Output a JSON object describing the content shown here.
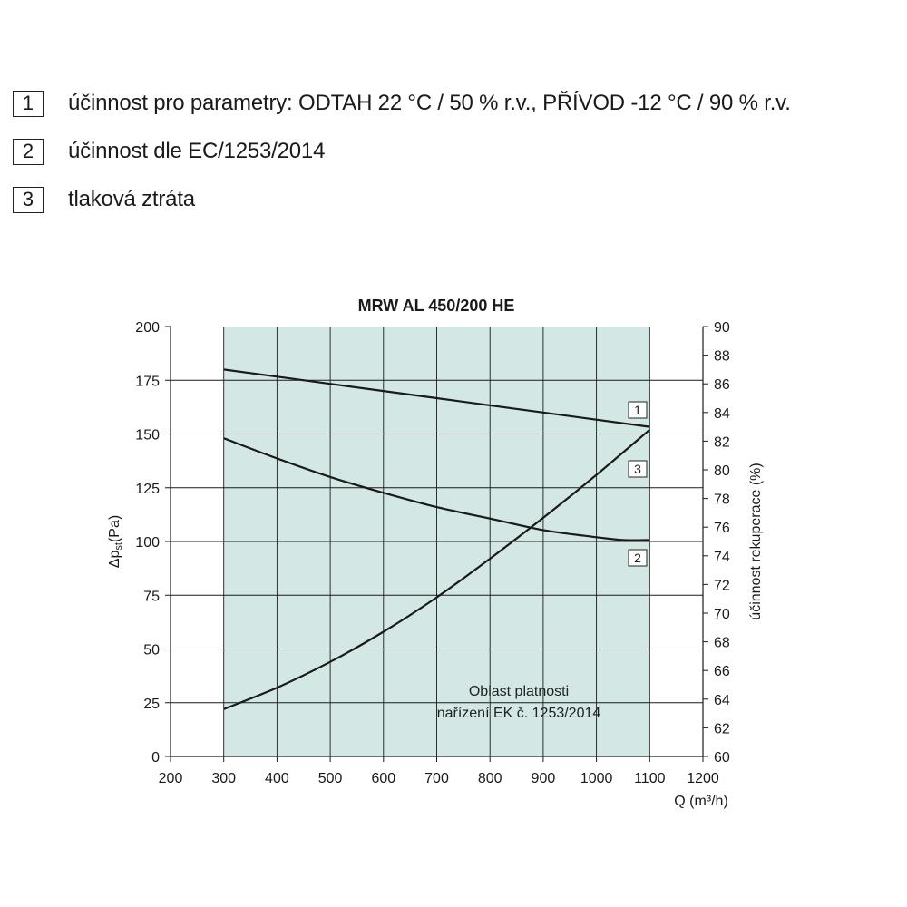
{
  "legend": [
    {
      "num": "1",
      "text": "účinnost pro parametry: ODTAH 22 °C / 50 % r.v., PŘÍVOD -12 °C / 90 % r.v."
    },
    {
      "num": "2",
      "text": "účinnost dle EC/1253/2014"
    },
    {
      "num": "3",
      "text": "tlaková ztráta"
    }
  ],
  "chart_data": {
    "type": "line",
    "title": "MRW AL 450/200 HE",
    "xlabel": "Q (m³/h)",
    "ylabel_left": "Δpst(Pa)",
    "ylabel_right": "účinnost rekuperace (%)",
    "xlim": [
      200,
      1200
    ],
    "xticks": [
      200,
      300,
      400,
      500,
      600,
      700,
      800,
      900,
      1000,
      1100,
      1200
    ],
    "ylim_left": [
      0,
      200
    ],
    "yticks_left": [
      0,
      25,
      50,
      75,
      100,
      125,
      150,
      175,
      200
    ],
    "ylim_right": [
      60,
      90
    ],
    "yticks_right": [
      60,
      62,
      64,
      66,
      68,
      70,
      72,
      74,
      76,
      78,
      80,
      82,
      84,
      86,
      88,
      90
    ],
    "grid": true,
    "valid_region": {
      "x": [
        300,
        1100
      ],
      "label": [
        "Oblast platnosti",
        "nařízení EK č. 1253/2014"
      ],
      "color": "#d3e8e5"
    },
    "series": [
      {
        "name": "1",
        "axis": "right",
        "x": [
          300,
          500,
          700,
          900,
          1100
        ],
        "y": [
          87.0,
          86.0,
          85.0,
          84.0,
          83.0
        ]
      },
      {
        "name": "2",
        "axis": "right",
        "x": [
          300,
          400,
          500,
          600,
          700,
          800,
          900,
          1000,
          1050,
          1100
        ],
        "y": [
          82.2,
          80.8,
          79.5,
          78.4,
          77.4,
          76.6,
          75.8,
          75.3,
          75.1,
          75.1
        ]
      },
      {
        "name": "3",
        "axis": "left",
        "x": [
          300,
          400,
          500,
          600,
          700,
          800,
          900,
          1000,
          1100
        ],
        "y": [
          22,
          32,
          44,
          58,
          74,
          92,
          111,
          131,
          152
        ]
      }
    ]
  }
}
